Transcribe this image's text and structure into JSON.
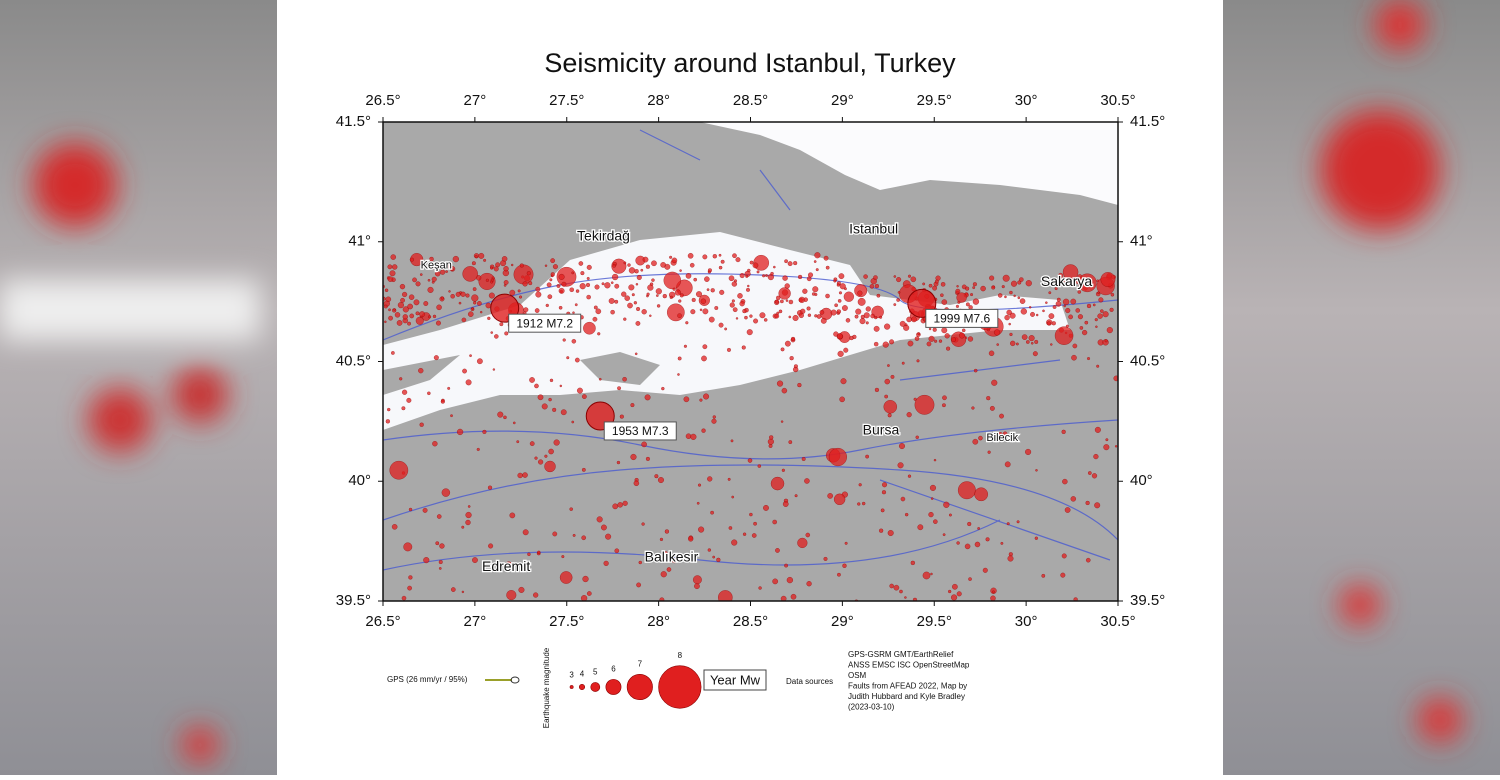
{
  "title": "Seismicity around Istanbul, Turkey",
  "map": {
    "lonlim": [
      26.5,
      30.5
    ],
    "latlim": [
      39.5,
      41.5
    ],
    "lon_ticks": [
      {
        "value": 26.5,
        "label": "26.5°"
      },
      {
        "value": 27,
        "label": "27°"
      },
      {
        "value": 27.5,
        "label": "27.5°"
      },
      {
        "value": 28,
        "label": "28°"
      },
      {
        "value": 28.5,
        "label": "28.5°"
      },
      {
        "value": 29,
        "label": "29°"
      },
      {
        "value": 29.5,
        "label": "29.5°"
      },
      {
        "value": 30,
        "label": "30°"
      },
      {
        "value": 30.5,
        "label": "30.5°"
      }
    ],
    "lat_ticks": [
      {
        "value": 39.5,
        "label": "39.5°"
      },
      {
        "value": 40,
        "label": "40°"
      },
      {
        "value": 40.5,
        "label": "40.5°"
      },
      {
        "value": 41,
        "label": "41°"
      },
      {
        "value": 41.5,
        "label": "41.5°"
      }
    ],
    "places": [
      {
        "label": "Tekirdağ",
        "lon": 27.7,
        "lat": 41.02
      },
      {
        "label": "Keşan",
        "lon": 26.79,
        "lat": 40.9
      },
      {
        "label": "Istanbul",
        "lon": 29.17,
        "lat": 41.05
      },
      {
        "label": "Sakarya",
        "lon": 30.22,
        "lat": 40.83
      },
      {
        "label": "Bursa",
        "lon": 29.21,
        "lat": 40.21
      },
      {
        "label": "Bilecik",
        "lon": 29.87,
        "lat": 40.18
      },
      {
        "label": "Balıkesir",
        "lon": 28.07,
        "lat": 39.68
      },
      {
        "label": "Edremit",
        "lon": 27.17,
        "lat": 39.64
      }
    ],
    "events": [
      {
        "label": "1912 M7.2",
        "lon": 27.38,
        "lat": 40.66
      },
      {
        "label": "1953 M7.3",
        "lon": 27.9,
        "lat": 40.21
      },
      {
        "label": "1999 M7.6",
        "lon": 29.65,
        "lat": 40.68
      }
    ]
  },
  "legend": {
    "gps": "GPS (26 mm/yr / 95%)",
    "magnitude_title": "Earthquake magnitude",
    "magnitudes": [
      3,
      4,
      5,
      6,
      7,
      8
    ],
    "year_label": "Year Mw",
    "sources_title": "Data sources",
    "sources": [
      "GPS-GSRM GMT/EarthRelief",
      "ANSS EMSC ISC OpenStreetMap",
      "OSM",
      "Faults from AFEAD 2022, Map by",
      "Judith Hubbard and Kyle Bradley",
      "(2023-03-10)"
    ]
  }
}
